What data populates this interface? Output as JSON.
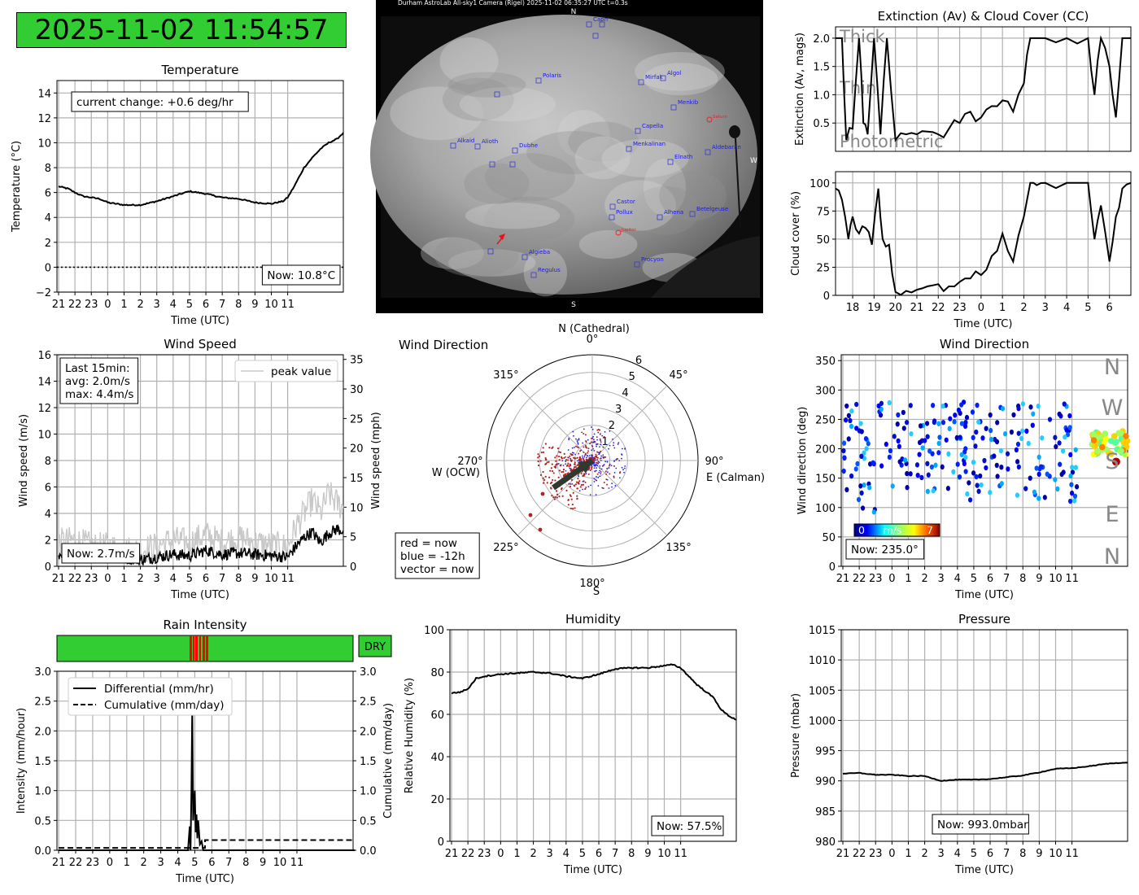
{
  "timestamp": "2025-11-02 11:54:57",
  "colors": {
    "dry": "#32cd32",
    "rain": "#ff0000",
    "now_points": "#b22222",
    "old_points": "#2222dd"
  },
  "sky_camera": {
    "header": "Durham AstroLab All-sky1 Camera (Rigel)        2025-11-02 06:35:27 UTC        t=0.3s",
    "north": "N",
    "south": "S",
    "west": "W",
    "stars": [
      "Caph",
      "Polaris",
      "Mirfak",
      "Algol",
      "Menkib",
      "Capella",
      "Menkalinan",
      "Elnath",
      "Aldebaran",
      "Alkaid",
      "Alioth",
      "Dubhe",
      "Castor",
      "Pollux",
      "Alhena",
      "Betelgeuse",
      "Algieba",
      "Regulus",
      "Procyon"
    ],
    "planets": [
      "Saturn",
      "Jupiter"
    ]
  },
  "tick_labels": {
    "hours_21_11": [
      "21",
      "22",
      "23",
      "0",
      "1",
      "2",
      "3",
      "4",
      "5",
      "6",
      "7",
      "8",
      "9",
      "10",
      "11"
    ]
  },
  "chart_data": [
    {
      "id": "temperature",
      "type": "line",
      "title": "Temperature",
      "xlabel": "Time (UTC)",
      "ylabel": "Temperature (°C)",
      "ylim": [
        -2,
        15
      ],
      "yticks": [
        -2,
        0,
        2,
        4,
        6,
        8,
        10,
        12,
        14
      ],
      "annotation": "current change: +0.6 deg/hr",
      "now_label": "Now: 10.8°C",
      "grid": true,
      "x": [
        0,
        0.3,
        0.6,
        1,
        1.5,
        2,
        2.5,
        3,
        4,
        5,
        6,
        7,
        8,
        9,
        10,
        11,
        12,
        13,
        13.7,
        14,
        14.4,
        14.8,
        15,
        15.5,
        16,
        16.5,
        17,
        17.4
      ],
      "values": [
        6.5,
        6.4,
        6.3,
        6.0,
        5.7,
        5.6,
        5.5,
        5.2,
        5.0,
        5.0,
        5.3,
        5.7,
        6.1,
        5.9,
        5.6,
        5.5,
        5.2,
        5.1,
        5.3,
        5.6,
        6.5,
        7.5,
        8.0,
        8.8,
        9.5,
        10.0,
        10.3,
        10.8
      ]
    },
    {
      "id": "extinction",
      "type": "line",
      "title": "Extinction (Av) & Cloud Cover (CC)",
      "xlabel": "",
      "ylabel": "Extinction (Av, mags)",
      "ylim": [
        0,
        2.2
      ],
      "yticks": [
        0.5,
        1.0,
        1.5,
        2.0
      ],
      "band_labels": [
        "Thick",
        "Thin",
        "Photometric"
      ],
      "x": [
        17.2,
        17.5,
        17.7,
        18,
        18.3,
        18.5,
        18.7,
        19,
        19.3,
        19.6,
        20,
        20.5,
        21,
        21.5,
        22,
        22.5,
        23,
        23.5,
        24,
        24.5,
        25,
        25.5,
        26,
        26.3,
        26.5,
        27,
        28,
        29,
        29.3,
        29.6,
        30,
        30.3,
        30.6,
        31
      ],
      "values": [
        2.0,
        2.0,
        0.2,
        0.4,
        2.0,
        0.5,
        0.3,
        2.0,
        0.3,
        2.0,
        0.2,
        0.3,
        0.3,
        0.35,
        0.3,
        0.4,
        0.5,
        0.7,
        0.6,
        0.8,
        0.9,
        0.7,
        1.2,
        2.0,
        2.0,
        2.0,
        2.0,
        2.0,
        1.0,
        2.0,
        1.5,
        0.6,
        2.0,
        2.0
      ]
    },
    {
      "id": "cloud-cover",
      "type": "line",
      "title": "",
      "xlabel": "Time (UTC)",
      "ylabel": "Cloud cover (%)",
      "ylim": [
        0,
        110
      ],
      "yticks": [
        0,
        25,
        50,
        75,
        100
      ],
      "xtick_labels": [
        "18",
        "19",
        "20",
        "21",
        "22",
        "23",
        "0",
        "1",
        "2",
        "3",
        "4",
        "5",
        "6"
      ],
      "x": [
        17.2,
        17.5,
        17.8,
        18,
        18.3,
        18.6,
        18.9,
        19.2,
        19.4,
        19.7,
        20,
        20.5,
        21,
        21.5,
        22,
        22.5,
        23,
        23.5,
        24,
        24.5,
        25,
        25.5,
        26,
        26.3,
        26.6,
        27,
        28,
        29,
        29.3,
        29.6,
        30,
        30.3,
        30.6,
        31
      ],
      "values": [
        95,
        85,
        50,
        70,
        55,
        60,
        45,
        95,
        50,
        45,
        3,
        4,
        5,
        8,
        10,
        8,
        12,
        15,
        18,
        35,
        55,
        30,
        70,
        100,
        98,
        100,
        100,
        100,
        50,
        80,
        30,
        70,
        95,
        100
      ]
    },
    {
      "id": "wind-speed",
      "type": "line",
      "title": "Wind Speed",
      "xlabel": "Time (UTC)",
      "ylabel": "Wind speed (m/s)",
      "y2label": "Wind speed (mph)",
      "ylim": [
        0,
        16
      ],
      "yticks": [
        0,
        2,
        4,
        6,
        8,
        10,
        12,
        14,
        16
      ],
      "y2ticks": [
        0,
        5,
        10,
        15,
        20,
        25,
        30,
        35
      ],
      "legend": "peak value",
      "stats": [
        "Last 15min:",
        "avg: 2.0m/s",
        "max: 4.4m/s"
      ],
      "now_label": "Now: 2.7m/s",
      "x": [
        0,
        1,
        2,
        3,
        4,
        5,
        6,
        7,
        8,
        9,
        10,
        11,
        12,
        13,
        14,
        14.5,
        15,
        15.5,
        16,
        16.5,
        17,
        17.4
      ],
      "values": [
        0.9,
        1.0,
        0.8,
        0.7,
        0.6,
        0.5,
        0.7,
        0.9,
        0.8,
        1.2,
        0.9,
        1.0,
        0.9,
        0.8,
        0.7,
        1.5,
        2.2,
        2.6,
        1.8,
        2.5,
        2.8,
        2.7
      ],
      "peak_values": [
        1.8,
        2.0,
        1.5,
        1.5,
        1.3,
        1.2,
        1.6,
        2.0,
        1.8,
        2.4,
        1.8,
        2.2,
        1.8,
        1.6,
        1.5,
        3.0,
        4.0,
        5.0,
        4.0,
        5.5,
        4.8,
        4.4
      ]
    },
    {
      "id": "wind-direction-polar",
      "type": "scatter",
      "title": "Wind Direction",
      "north_label": "N (Cathedral)",
      "south_label": "S",
      "east_label": "E (Calman)",
      "west_label": "W (OCW)",
      "angle_labels": [
        "0°",
        "45°",
        "90°",
        "135°",
        "180°",
        "225°",
        "270°",
        "315°"
      ],
      "radial_ticks": [
        1,
        2,
        3,
        4,
        5,
        6
      ],
      "legend": [
        "red = now",
        "blue = -12h",
        "vector = now"
      ],
      "vector": {
        "direction_deg": 235,
        "speed": 2.7
      }
    },
    {
      "id": "wind-direction-time",
      "type": "scatter",
      "title": "Wind Direction",
      "xlabel": "Time (UTC)",
      "ylabel": "Wind direction (deg)",
      "ylim": [
        0,
        360
      ],
      "yticks": [
        0,
        50,
        100,
        150,
        200,
        250,
        300,
        350
      ],
      "compass_labels": [
        "N",
        "W",
        "S",
        "E",
        "N"
      ],
      "colorbar": {
        "min": "0",
        "label": "m/s",
        "max": "7"
      },
      "now_label": "Now: 235.0°"
    },
    {
      "id": "rain-intensity",
      "type": "line",
      "title": "Rain Intensity",
      "xlabel": "Time (UTC)",
      "ylabel": "Intensity (mm/hour)",
      "y2label": "Cumulative (mm/day)",
      "ylim": [
        0,
        3
      ],
      "yticks": [
        0.0,
        0.5,
        1.0,
        1.5,
        2.0,
        2.5,
        3.0
      ],
      "status": "DRY",
      "series": [
        {
          "name": "Differential (mm/hr)",
          "x": [
            0,
            7.6,
            7.7,
            7.75,
            7.8,
            7.85,
            7.9,
            8.0,
            8.05,
            8.1,
            8.15,
            8.2,
            8.3,
            8.4,
            8.5,
            17.4
          ],
          "values": [
            0,
            0,
            0.4,
            0,
            1.0,
            2.4,
            0.5,
            1.0,
            0.3,
            0.6,
            0.2,
            0.5,
            0.1,
            0.15,
            0,
            0
          ]
        },
        {
          "name": "Cumulative (mm/day)",
          "x": [
            0,
            8.6,
            8.6,
            17.4
          ],
          "values": [
            0.04,
            0.04,
            0.17,
            0.17
          ]
        }
      ]
    },
    {
      "id": "humidity",
      "type": "line",
      "title": "Humidity",
      "xlabel": "Time (UTC)",
      "ylabel": "Relative Humidity (%)",
      "ylim": [
        0,
        100
      ],
      "yticks": [
        0,
        20,
        40,
        60,
        80,
        100
      ],
      "now_label": "Now: 57.5%",
      "x": [
        0,
        0.5,
        1,
        1.5,
        2,
        3,
        4,
        5,
        6,
        7,
        8,
        9,
        10,
        11,
        12,
        13,
        13.5,
        14,
        14.5,
        15,
        16,
        16.5,
        17,
        17.4
      ],
      "values": [
        70,
        70.5,
        72,
        77,
        78,
        79,
        79.5,
        80,
        79.5,
        78,
        77,
        79,
        81.5,
        82,
        82,
        83,
        83.5,
        82,
        78,
        74,
        68,
        62,
        59,
        57.5
      ]
    },
    {
      "id": "pressure",
      "type": "line",
      "title": "Pressure",
      "xlabel": "Time (UTC)",
      "ylabel": "Pressure (mbar)",
      "ylim": [
        980,
        1015
      ],
      "yticks": [
        980,
        985,
        990,
        995,
        1000,
        1005,
        1010,
        1015
      ],
      "now_label": "Now: 993.0mbar",
      "x": [
        0,
        1,
        2,
        3,
        4,
        5,
        6,
        7,
        8,
        9,
        10,
        11,
        12,
        13,
        14,
        15,
        16,
        17,
        17.4
      ],
      "values": [
        991.2,
        991.3,
        991.0,
        991.0,
        990.8,
        990.8,
        990.0,
        990.2,
        990.2,
        990.3,
        990.6,
        990.9,
        991.4,
        992.0,
        992.1,
        992.4,
        992.8,
        993.0,
        993.0
      ]
    }
  ]
}
